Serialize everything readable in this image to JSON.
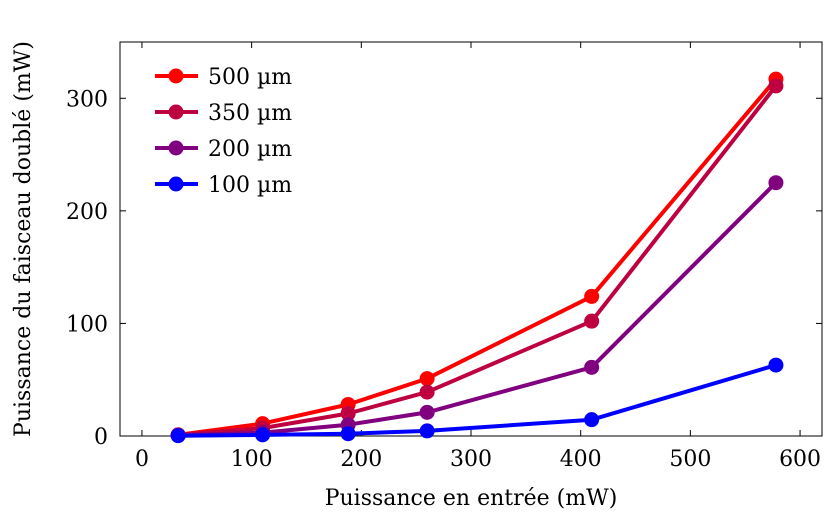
{
  "chart_data": {
    "type": "line",
    "title": "",
    "xlabel": "Puissance en entrée (mW)",
    "ylabel": "Puissance du faisceau doublé (mW)",
    "xlim": [
      -20,
      620
    ],
    "ylim": [
      0,
      350
    ],
    "xticks": [
      0,
      100,
      200,
      300,
      400,
      500,
      600
    ],
    "yticks": [
      0,
      100,
      200,
      300
    ],
    "grid": false,
    "legend_position": "top-left",
    "x": [
      33,
      110,
      188,
      260,
      410,
      578
    ],
    "series": [
      {
        "name": "500 µm",
        "color": "#ff0000",
        "values": [
          1,
          11,
          28,
          51,
          124,
          317
        ]
      },
      {
        "name": "350 µm",
        "color": "#bf0040",
        "values": [
          1,
          7,
          20,
          39,
          102,
          311
        ]
      },
      {
        "name": "200 µm",
        "color": "#800080",
        "values": [
          0.5,
          3,
          10,
          21,
          61,
          225
        ]
      },
      {
        "name": "100 µm",
        "color": "#0000ff",
        "values": [
          0.3,
          1,
          2,
          4.5,
          14.5,
          63
        ]
      }
    ]
  }
}
